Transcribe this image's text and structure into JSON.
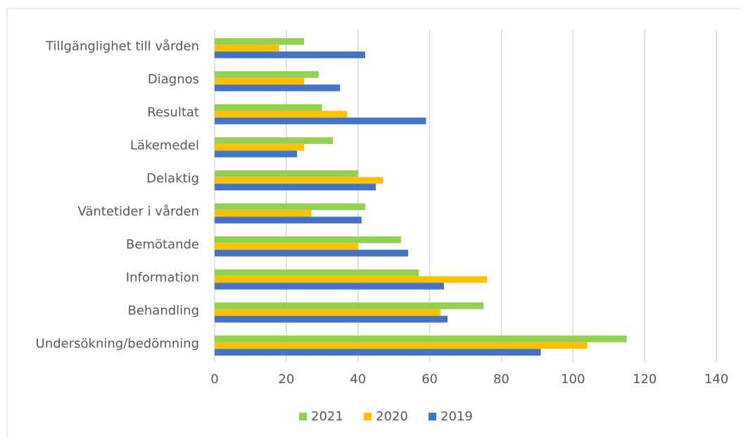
{
  "chart_data": {
    "type": "barh",
    "categories": [
      "Tillgänglighet till vården",
      "Diagnos",
      "Resultat",
      "Läkemedel",
      "Delaktig",
      "Väntetider i vården",
      "Bemötande",
      "Information",
      "Behandling",
      "Undersökning/bedömning"
    ],
    "series": [
      {
        "name": "2021",
        "color": "#92d050",
        "values": [
          25,
          29,
          30,
          33,
          40,
          42,
          52,
          57,
          75,
          115
        ]
      },
      {
        "name": "2020",
        "color": "#ffc000",
        "values": [
          18,
          25,
          37,
          25,
          47,
          27,
          40,
          76,
          63,
          104
        ]
      },
      {
        "name": "2019",
        "color": "#4472c4",
        "values": [
          42,
          35,
          59,
          23,
          45,
          41,
          54,
          64,
          65,
          91
        ]
      }
    ],
    "xlim": [
      0,
      140
    ],
    "xticks": [
      0,
      20,
      40,
      60,
      80,
      100,
      120,
      140
    ],
    "grid": true,
    "legend": "bottom"
  }
}
